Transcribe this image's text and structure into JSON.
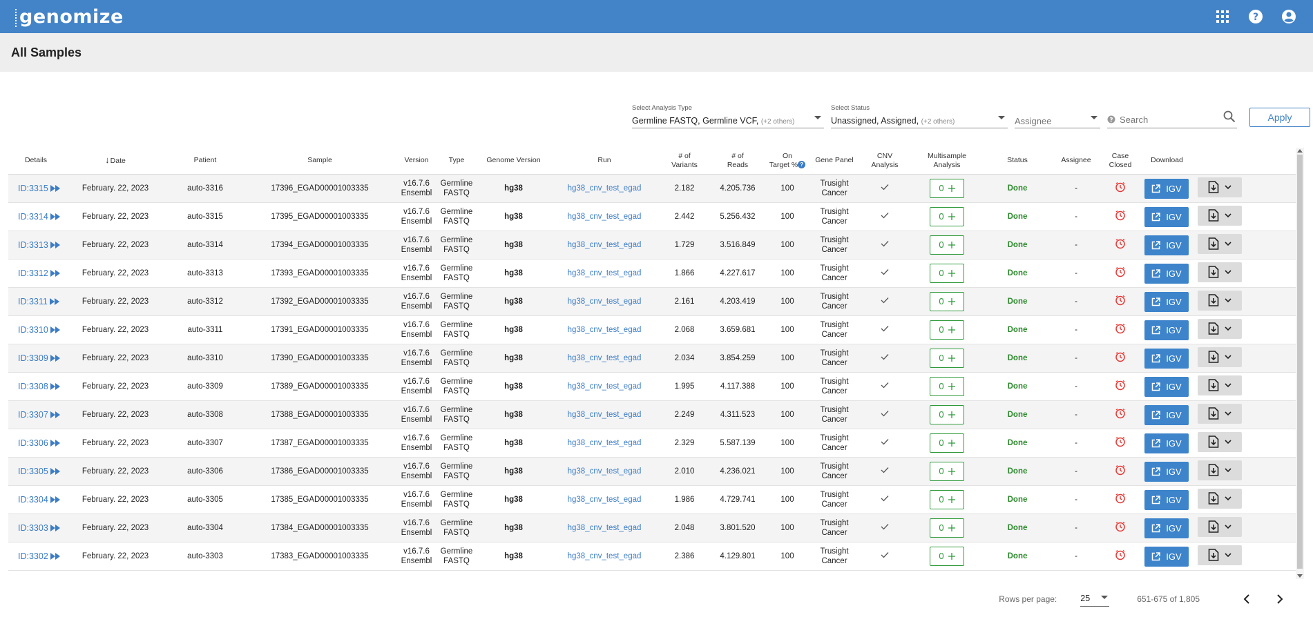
{
  "app": {
    "logo_text": "genomize"
  },
  "topbar": {
    "icons": [
      "apps-grid-icon",
      "help-icon",
      "account-icon"
    ]
  },
  "page": {
    "title": "All Samples"
  },
  "filters": {
    "analysis_type": {
      "label": "Select Analysis Type",
      "value": "Germline FASTQ, Germline VCF,",
      "more": "(+2 others)"
    },
    "status": {
      "label": "Select Status",
      "value": "Unassigned, Assigned,",
      "more": "(+2 others)"
    },
    "assignee": {
      "placeholder": "Assignee"
    },
    "search": {
      "placeholder": "Search"
    },
    "apply_label": "Apply"
  },
  "table": {
    "columns": {
      "details": "Details",
      "date": "Date",
      "patient": "Patient",
      "sample": "Sample",
      "version": "Version",
      "type": "Type",
      "genome_version": "Genome Version",
      "run": "Run",
      "variants_1": "# of",
      "variants_2": "Variants",
      "reads_1": "# of",
      "reads_2": "Reads",
      "on_target_1": "On",
      "on_target_2": "Target %",
      "gene_panel": "Gene Panel",
      "cnv_1": "CNV",
      "cnv_2": "Analysis",
      "multisample_1": "Multisample",
      "multisample_2": "Analysis",
      "status": "Status",
      "assignee": "Assignee",
      "case_closed_1": "Case",
      "case_closed_2": "Closed",
      "download": "Download"
    },
    "common": {
      "date": "February. 22, 2023",
      "version_1": "v16.7.6",
      "version_2": "Ensembl",
      "type_1": "Germline",
      "type_2": "FASTQ",
      "genome": "hg38",
      "run": "hg38_cnv_test_egad",
      "on_target": "100",
      "gene_panel_1": "Trusight",
      "gene_panel_2": "Cancer",
      "multisample_count": "0",
      "status": "Done",
      "assignee": "-",
      "igv_label": "IGV"
    },
    "rows": [
      {
        "id": "ID:3315",
        "patient": "auto-3316",
        "sample": "17396_EGAD00001003335",
        "variants": "2.182",
        "reads": "4.205.736"
      },
      {
        "id": "ID:3314",
        "patient": "auto-3315",
        "sample": "17395_EGAD00001003335",
        "variants": "2.442",
        "reads": "5.256.432"
      },
      {
        "id": "ID:3313",
        "patient": "auto-3314",
        "sample": "17394_EGAD00001003335",
        "variants": "1.729",
        "reads": "3.516.849"
      },
      {
        "id": "ID:3312",
        "patient": "auto-3313",
        "sample": "17393_EGAD00001003335",
        "variants": "1.866",
        "reads": "4.227.617"
      },
      {
        "id": "ID:3311",
        "patient": "auto-3312",
        "sample": "17392_EGAD00001003335",
        "variants": "2.161",
        "reads": "4.203.419"
      },
      {
        "id": "ID:3310",
        "patient": "auto-3311",
        "sample": "17391_EGAD00001003335",
        "variants": "2.068",
        "reads": "3.659.681"
      },
      {
        "id": "ID:3309",
        "patient": "auto-3310",
        "sample": "17390_EGAD00001003335",
        "variants": "2.034",
        "reads": "3.854.259"
      },
      {
        "id": "ID:3308",
        "patient": "auto-3309",
        "sample": "17389_EGAD00001003335",
        "variants": "1.995",
        "reads": "4.117.388"
      },
      {
        "id": "ID:3307",
        "patient": "auto-3308",
        "sample": "17388_EGAD00001003335",
        "variants": "2.249",
        "reads": "4.311.523"
      },
      {
        "id": "ID:3306",
        "patient": "auto-3307",
        "sample": "17387_EGAD00001003335",
        "variants": "2.329",
        "reads": "5.587.139"
      },
      {
        "id": "ID:3305",
        "patient": "auto-3306",
        "sample": "17386_EGAD00001003335",
        "variants": "2.010",
        "reads": "4.236.021"
      },
      {
        "id": "ID:3304",
        "patient": "auto-3305",
        "sample": "17385_EGAD00001003335",
        "variants": "1.986",
        "reads": "4.729.741"
      },
      {
        "id": "ID:3303",
        "patient": "auto-3304",
        "sample": "17384_EGAD00001003335",
        "variants": "2.048",
        "reads": "3.801.520"
      },
      {
        "id": "ID:3302",
        "patient": "auto-3303",
        "sample": "17383_EGAD00001003335",
        "variants": "2.386",
        "reads": "4.129.801"
      }
    ]
  },
  "pagination": {
    "rows_per_page_label": "Rows per page:",
    "rows_per_page": "25",
    "range": "651-675 of 1,805"
  },
  "colors": {
    "brand": "#4384c8",
    "done": "#2e8b2e",
    "multi": "#2e9a3a",
    "case_closed": "#e53935"
  }
}
